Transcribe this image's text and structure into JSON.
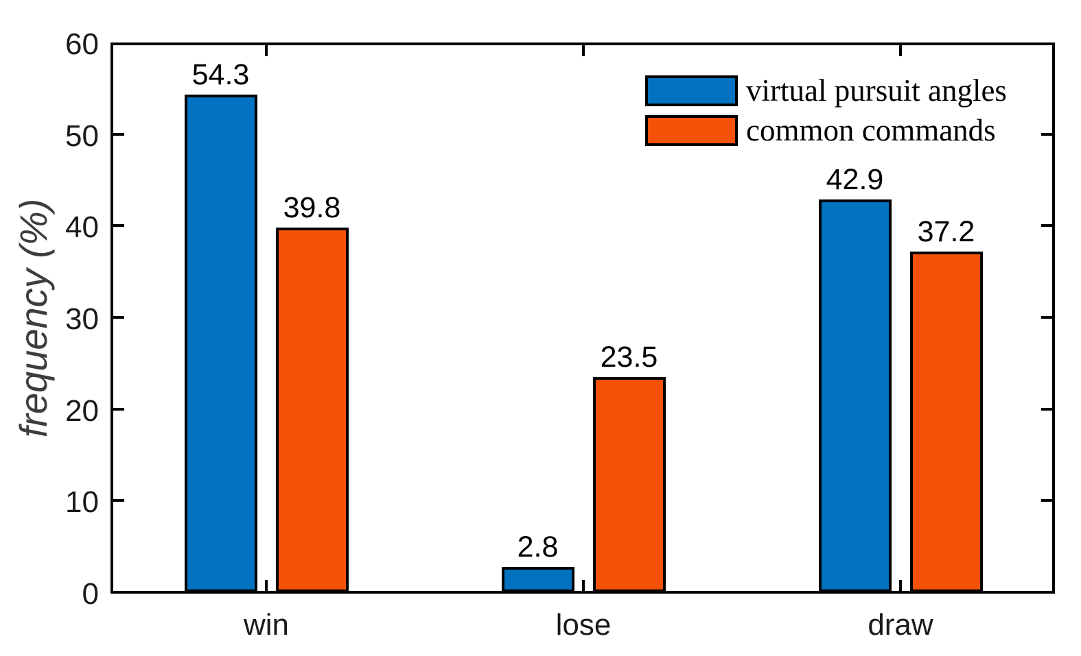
{
  "chart_data": {
    "type": "bar",
    "title": "",
    "xlabel": "",
    "ylabel": "frequency (%)",
    "categories": [
      "win",
      "lose",
      "draw"
    ],
    "series": [
      {
        "name": "virtual pursuit angles",
        "color": "#0072C0",
        "values": [
          54.3,
          2.8,
          42.9
        ]
      },
      {
        "name": "common commands",
        "color": "#F55108",
        "values": [
          39.8,
          23.5,
          37.2
        ]
      }
    ],
    "bar_labels": [
      "54.3",
      "39.8",
      "2.8",
      "23.5",
      "42.9",
      "37.2"
    ],
    "ylim": [
      0,
      60
    ],
    "yticks": [
      0,
      10,
      20,
      30,
      40,
      50,
      60
    ],
    "grid": false,
    "legend_position": "top-right",
    "legend_frame": false,
    "tick_direction": "in",
    "bar_edge_color": "#000000",
    "axis_color": "#000000"
  }
}
